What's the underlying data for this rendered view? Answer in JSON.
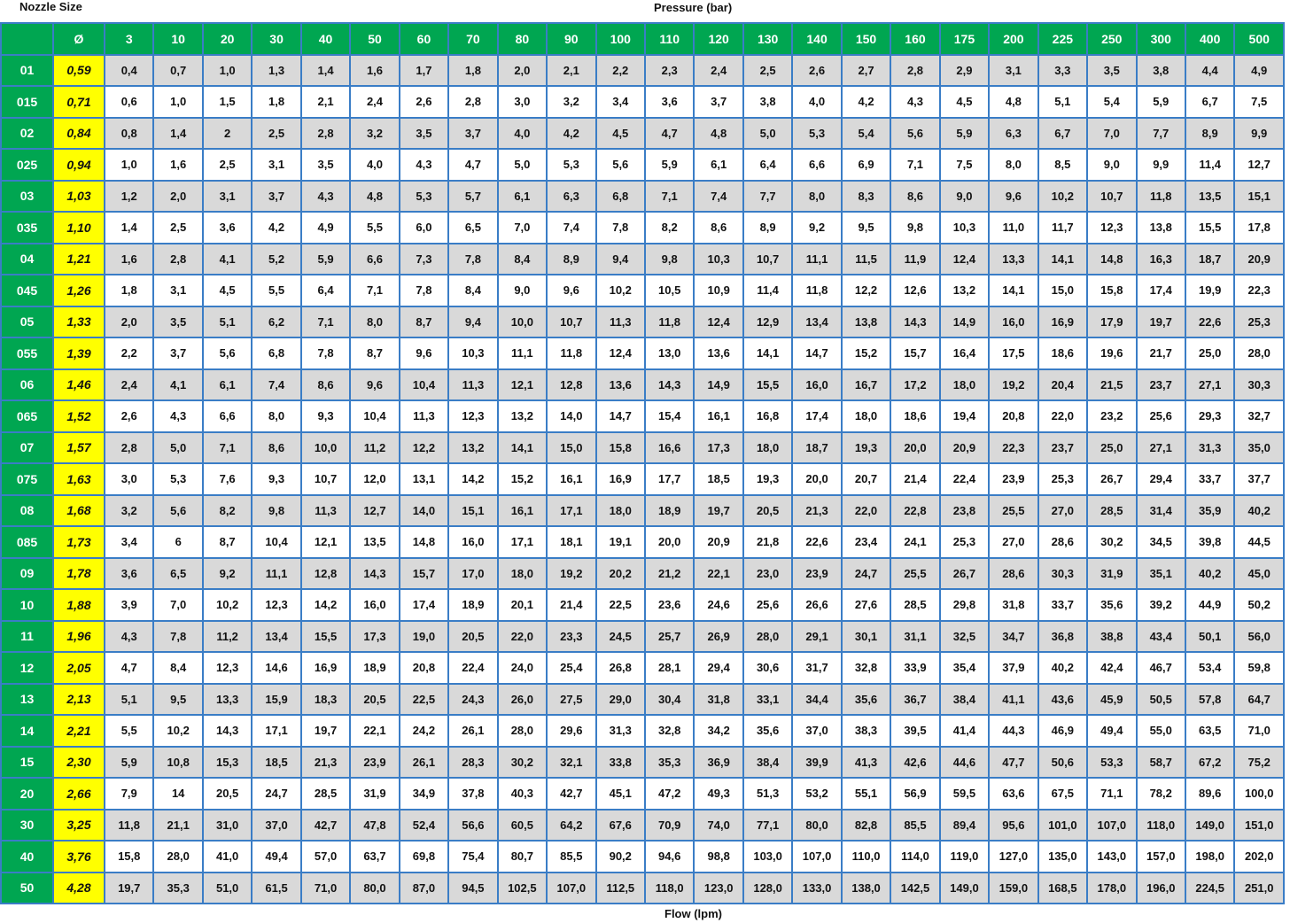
{
  "labels": {
    "nozzle_size": "Nozzle Size",
    "pressure": "Pressure (bar)",
    "flow": "Flow (lpm)"
  },
  "table": {
    "header": {
      "diameter": "Ø",
      "pressures": [
        3,
        10,
        20,
        30,
        40,
        50,
        60,
        70,
        80,
        90,
        100,
        110,
        120,
        130,
        140,
        150,
        160,
        175,
        200,
        225,
        250,
        300,
        400,
        500
      ]
    },
    "rows": [
      [
        "01",
        "0,59",
        "0,4",
        "0,7",
        "1,0",
        "1,3",
        "1,4",
        "1,6",
        "1,7",
        "1,8",
        "2,0",
        "2,1",
        "2,2",
        "2,3",
        "2,4",
        "2,5",
        "2,6",
        "2,7",
        "2,8",
        "2,9",
        "3,1",
        "3,3",
        "3,5",
        "3,8",
        "4,4",
        "4,9"
      ],
      [
        "015",
        "0,71",
        "0,6",
        "1,0",
        "1,5",
        "1,8",
        "2,1",
        "2,4",
        "2,6",
        "2,8",
        "3,0",
        "3,2",
        "3,4",
        "3,6",
        "3,7",
        "3,8",
        "4,0",
        "4,2",
        "4,3",
        "4,5",
        "4,8",
        "5,1",
        "5,4",
        "5,9",
        "6,7",
        "7,5"
      ],
      [
        "02",
        "0,84",
        "0,8",
        "1,4",
        "2",
        "2,5",
        "2,8",
        "3,2",
        "3,5",
        "3,7",
        "4,0",
        "4,2",
        "4,5",
        "4,7",
        "4,8",
        "5,0",
        "5,3",
        "5,4",
        "5,6",
        "5,9",
        "6,3",
        "6,7",
        "7,0",
        "7,7",
        "8,9",
        "9,9"
      ],
      [
        "025",
        "0,94",
        "1,0",
        "1,6",
        "2,5",
        "3,1",
        "3,5",
        "4,0",
        "4,3",
        "4,7",
        "5,0",
        "5,3",
        "5,6",
        "5,9",
        "6,1",
        "6,4",
        "6,6",
        "6,9",
        "7,1",
        "7,5",
        "8,0",
        "8,5",
        "9,0",
        "9,9",
        "11,4",
        "12,7"
      ],
      [
        "03",
        "1,03",
        "1,2",
        "2,0",
        "3,1",
        "3,7",
        "4,3",
        "4,8",
        "5,3",
        "5,7",
        "6,1",
        "6,3",
        "6,8",
        "7,1",
        "7,4",
        "7,7",
        "8,0",
        "8,3",
        "8,6",
        "9,0",
        "9,6",
        "10,2",
        "10,7",
        "11,8",
        "13,5",
        "15,1"
      ],
      [
        "035",
        "1,10",
        "1,4",
        "2,5",
        "3,6",
        "4,2",
        "4,9",
        "5,5",
        "6,0",
        "6,5",
        "7,0",
        "7,4",
        "7,8",
        "8,2",
        "8,6",
        "8,9",
        "9,2",
        "9,5",
        "9,8",
        "10,3",
        "11,0",
        "11,7",
        "12,3",
        "13,8",
        "15,5",
        "17,8"
      ],
      [
        "04",
        "1,21",
        "1,6",
        "2,8",
        "4,1",
        "5,2",
        "5,9",
        "6,6",
        "7,3",
        "7,8",
        "8,4",
        "8,9",
        "9,4",
        "9,8",
        "10,3",
        "10,7",
        "11,1",
        "11,5",
        "11,9",
        "12,4",
        "13,3",
        "14,1",
        "14,8",
        "16,3",
        "18,7",
        "20,9"
      ],
      [
        "045",
        "1,26",
        "1,8",
        "3,1",
        "4,5",
        "5,5",
        "6,4",
        "7,1",
        "7,8",
        "8,4",
        "9,0",
        "9,6",
        "10,2",
        "10,5",
        "10,9",
        "11,4",
        "11,8",
        "12,2",
        "12,6",
        "13,2",
        "14,1",
        "15,0",
        "15,8",
        "17,4",
        "19,9",
        "22,3"
      ],
      [
        "05",
        "1,33",
        "2,0",
        "3,5",
        "5,1",
        "6,2",
        "7,1",
        "8,0",
        "8,7",
        "9,4",
        "10,0",
        "10,7",
        "11,3",
        "11,8",
        "12,4",
        "12,9",
        "13,4",
        "13,8",
        "14,3",
        "14,9",
        "16,0",
        "16,9",
        "17,9",
        "19,7",
        "22,6",
        "25,3"
      ],
      [
        "055",
        "1,39",
        "2,2",
        "3,7",
        "5,6",
        "6,8",
        "7,8",
        "8,7",
        "9,6",
        "10,3",
        "11,1",
        "11,8",
        "12,4",
        "13,0",
        "13,6",
        "14,1",
        "14,7",
        "15,2",
        "15,7",
        "16,4",
        "17,5",
        "18,6",
        "19,6",
        "21,7",
        "25,0",
        "28,0"
      ],
      [
        "06",
        "1,46",
        "2,4",
        "4,1",
        "6,1",
        "7,4",
        "8,6",
        "9,6",
        "10,4",
        "11,3",
        "12,1",
        "12,8",
        "13,6",
        "14,3",
        "14,9",
        "15,5",
        "16,0",
        "16,7",
        "17,2",
        "18,0",
        "19,2",
        "20,4",
        "21,5",
        "23,7",
        "27,1",
        "30,3"
      ],
      [
        "065",
        "1,52",
        "2,6",
        "4,3",
        "6,6",
        "8,0",
        "9,3",
        "10,4",
        "11,3",
        "12,3",
        "13,2",
        "14,0",
        "14,7",
        "15,4",
        "16,1",
        "16,8",
        "17,4",
        "18,0",
        "18,6",
        "19,4",
        "20,8",
        "22,0",
        "23,2",
        "25,6",
        "29,3",
        "32,7"
      ],
      [
        "07",
        "1,57",
        "2,8",
        "5,0",
        "7,1",
        "8,6",
        "10,0",
        "11,2",
        "12,2",
        "13,2",
        "14,1",
        "15,0",
        "15,8",
        "16,6",
        "17,3",
        "18,0",
        "18,7",
        "19,3",
        "20,0",
        "20,9",
        "22,3",
        "23,7",
        "25,0",
        "27,1",
        "31,3",
        "35,0"
      ],
      [
        "075",
        "1,63",
        "3,0",
        "5,3",
        "7,6",
        "9,3",
        "10,7",
        "12,0",
        "13,1",
        "14,2",
        "15,2",
        "16,1",
        "16,9",
        "17,7",
        "18,5",
        "19,3",
        "20,0",
        "20,7",
        "21,4",
        "22,4",
        "23,9",
        "25,3",
        "26,7",
        "29,4",
        "33,7",
        "37,7"
      ],
      [
        "08",
        "1,68",
        "3,2",
        "5,6",
        "8,2",
        "9,8",
        "11,3",
        "12,7",
        "14,0",
        "15,1",
        "16,1",
        "17,1",
        "18,0",
        "18,9",
        "19,7",
        "20,5",
        "21,3",
        "22,0",
        "22,8",
        "23,8",
        "25,5",
        "27,0",
        "28,5",
        "31,4",
        "35,9",
        "40,2"
      ],
      [
        "085",
        "1,73",
        "3,4",
        "6",
        "8,7",
        "10,4",
        "12,1",
        "13,5",
        "14,8",
        "16,0",
        "17,1",
        "18,1",
        "19,1",
        "20,0",
        "20,9",
        "21,8",
        "22,6",
        "23,4",
        "24,1",
        "25,3",
        "27,0",
        "28,6",
        "30,2",
        "34,5",
        "39,8",
        "44,5"
      ],
      [
        "09",
        "1,78",
        "3,6",
        "6,5",
        "9,2",
        "11,1",
        "12,8",
        "14,3",
        "15,7",
        "17,0",
        "18,0",
        "19,2",
        "20,2",
        "21,2",
        "22,1",
        "23,0",
        "23,9",
        "24,7",
        "25,5",
        "26,7",
        "28,6",
        "30,3",
        "31,9",
        "35,1",
        "40,2",
        "45,0"
      ],
      [
        "10",
        "1,88",
        "3,9",
        "7,0",
        "10,2",
        "12,3",
        "14,2",
        "16,0",
        "17,4",
        "18,9",
        "20,1",
        "21,4",
        "22,5",
        "23,6",
        "24,6",
        "25,6",
        "26,6",
        "27,6",
        "28,5",
        "29,8",
        "31,8",
        "33,7",
        "35,6",
        "39,2",
        "44,9",
        "50,2"
      ],
      [
        "11",
        "1,96",
        "4,3",
        "7,8",
        "11,2",
        "13,4",
        "15,5",
        "17,3",
        "19,0",
        "20,5",
        "22,0",
        "23,3",
        "24,5",
        "25,7",
        "26,9",
        "28,0",
        "29,1",
        "30,1",
        "31,1",
        "32,5",
        "34,7",
        "36,8",
        "38,8",
        "43,4",
        "50,1",
        "56,0"
      ],
      [
        "12",
        "2,05",
        "4,7",
        "8,4",
        "12,3",
        "14,6",
        "16,9",
        "18,9",
        "20,8",
        "22,4",
        "24,0",
        "25,4",
        "26,8",
        "28,1",
        "29,4",
        "30,6",
        "31,7",
        "32,8",
        "33,9",
        "35,4",
        "37,9",
        "40,2",
        "42,4",
        "46,7",
        "53,4",
        "59,8"
      ],
      [
        "13",
        "2,13",
        "5,1",
        "9,5",
        "13,3",
        "15,9",
        "18,3",
        "20,5",
        "22,5",
        "24,3",
        "26,0",
        "27,5",
        "29,0",
        "30,4",
        "31,8",
        "33,1",
        "34,4",
        "35,6",
        "36,7",
        "38,4",
        "41,1",
        "43,6",
        "45,9",
        "50,5",
        "57,8",
        "64,7"
      ],
      [
        "14",
        "2,21",
        "5,5",
        "10,2",
        "14,3",
        "17,1",
        "19,7",
        "22,1",
        "24,2",
        "26,1",
        "28,0",
        "29,6",
        "31,3",
        "32,8",
        "34,2",
        "35,6",
        "37,0",
        "38,3",
        "39,5",
        "41,4",
        "44,3",
        "46,9",
        "49,4",
        "55,0",
        "63,5",
        "71,0"
      ],
      [
        "15",
        "2,30",
        "5,9",
        "10,8",
        "15,3",
        "18,5",
        "21,3",
        "23,9",
        "26,1",
        "28,3",
        "30,2",
        "32,1",
        "33,8",
        "35,3",
        "36,9",
        "38,4",
        "39,9",
        "41,3",
        "42,6",
        "44,6",
        "47,7",
        "50,6",
        "53,3",
        "58,7",
        "67,2",
        "75,2"
      ],
      [
        "20",
        "2,66",
        "7,9",
        "14",
        "20,5",
        "24,7",
        "28,5",
        "31,9",
        "34,9",
        "37,8",
        "40,3",
        "42,7",
        "45,1",
        "47,2",
        "49,3",
        "51,3",
        "53,2",
        "55,1",
        "56,9",
        "59,5",
        "63,6",
        "67,5",
        "71,1",
        "78,2",
        "89,6",
        "100,0"
      ],
      [
        "30",
        "3,25",
        "11,8",
        "21,1",
        "31,0",
        "37,0",
        "42,7",
        "47,8",
        "52,4",
        "56,6",
        "60,5",
        "64,2",
        "67,6",
        "70,9",
        "74,0",
        "77,1",
        "80,0",
        "82,8",
        "85,5",
        "89,4",
        "95,6",
        "101,0",
        "107,0",
        "118,0",
        "149,0",
        "151,0"
      ],
      [
        "40",
        "3,76",
        "15,8",
        "28,0",
        "41,0",
        "49,4",
        "57,0",
        "63,7",
        "69,8",
        "75,4",
        "80,7",
        "85,5",
        "90,2",
        "94,6",
        "98,8",
        "103,0",
        "107,0",
        "110,0",
        "114,0",
        "119,0",
        "127,0",
        "135,0",
        "143,0",
        "157,0",
        "198,0",
        "202,0"
      ],
      [
        "50",
        "4,28",
        "19,7",
        "35,3",
        "51,0",
        "61,5",
        "71,0",
        "80,0",
        "87,0",
        "94,5",
        "102,5",
        "107,0",
        "112,5",
        "118,0",
        "123,0",
        "128,0",
        "133,0",
        "138,0",
        "142,5",
        "149,0",
        "159,0",
        "168,5",
        "178,0",
        "196,0",
        "224,5",
        "251,0"
      ]
    ]
  }
}
